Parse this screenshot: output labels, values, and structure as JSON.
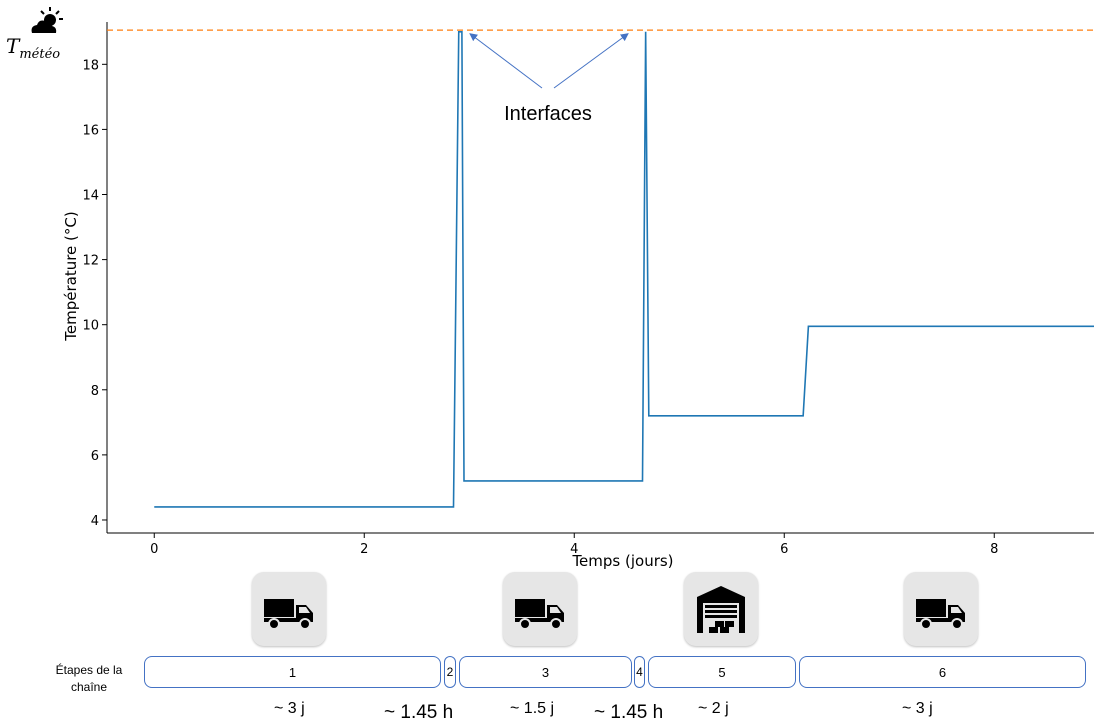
{
  "chart_data": {
    "type": "line",
    "xlabel": "Temps (jours)",
    "ylabel": "Température (°C)",
    "xlim": [
      -0.45,
      8.95
    ],
    "ylim": [
      3.6,
      19.3
    ],
    "xticks": [
      0,
      2,
      4,
      6,
      8
    ],
    "yticks": [
      4,
      6,
      8,
      10,
      12,
      14,
      16,
      18
    ],
    "grid": false,
    "series": [
      {
        "x": [
          0,
          2.85,
          2.9,
          2.93,
          2.95,
          4.65,
          4.68,
          4.71,
          6.18,
          6.23,
          8.95
        ],
        "y": [
          4.4,
          4.4,
          19.0,
          19.0,
          5.2,
          5.2,
          19.0,
          7.2,
          7.2,
          9.95,
          9.95
        ],
        "color": "#1f77b4"
      }
    ],
    "reference_line": {
      "y": 19.05,
      "color": "#ff7f0e",
      "style": "dashed"
    },
    "annotation": {
      "text": "Interfaces",
      "arrow_targets": [
        [
          2.95,
          19.0
        ],
        [
          4.55,
          19.0
        ]
      ]
    }
  },
  "tmeteo": {
    "base": "T",
    "sub": "météo"
  },
  "row_label": "Étapes de la chaîne",
  "stages": [
    {
      "label": "1"
    },
    {
      "label": "2"
    },
    {
      "label": "3"
    },
    {
      "label": "4"
    },
    {
      "label": "5"
    },
    {
      "label": "6"
    }
  ],
  "icons": [
    "truck-icon",
    "truck-icon",
    "warehouse-icon",
    "truck-icon"
  ],
  "durations": [
    "~ 3 j",
    "~ 1.45 h",
    "~ 1.5 j",
    "~ 1.45 h",
    "~ 2 j",
    "~ 3 j"
  ]
}
